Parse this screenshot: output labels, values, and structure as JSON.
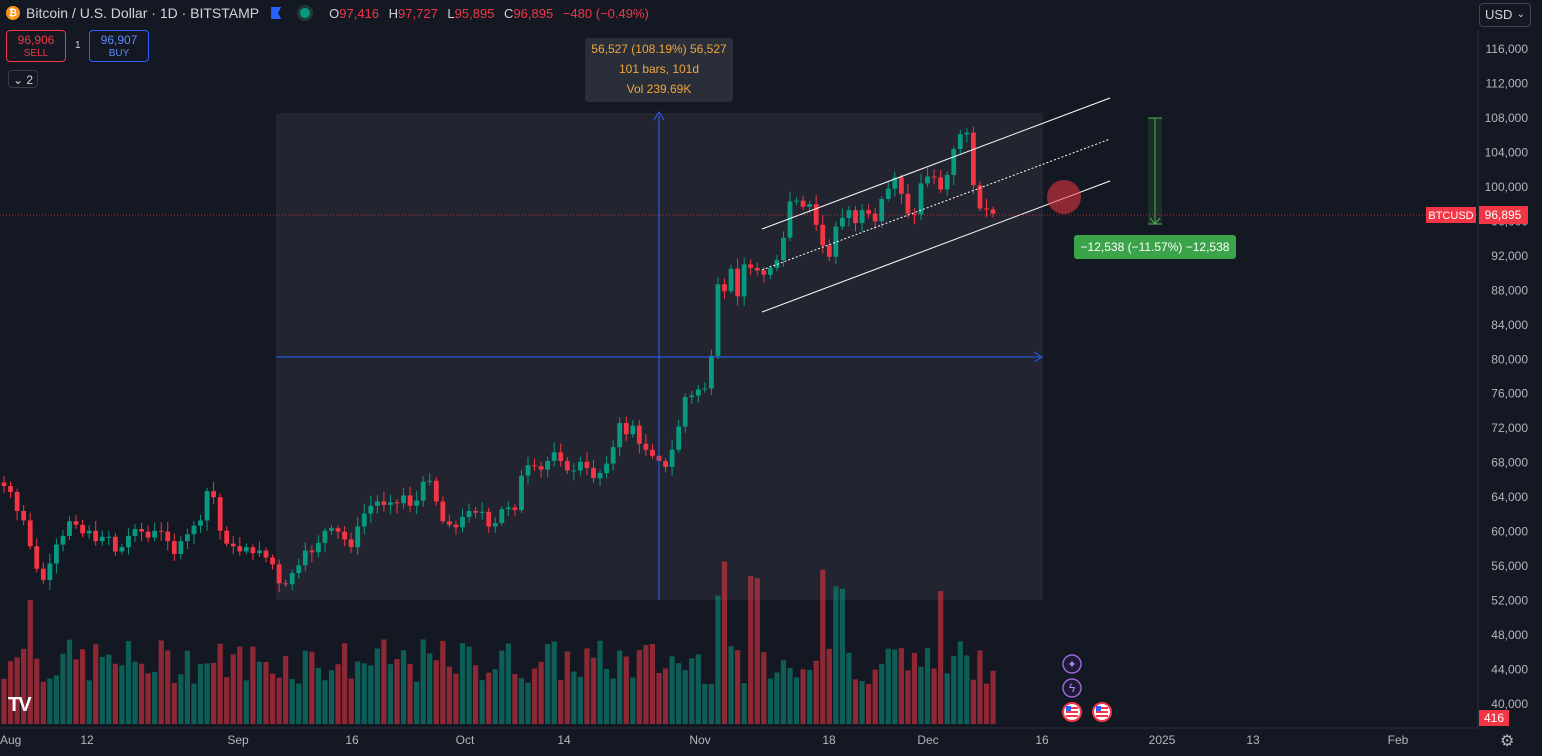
{
  "header": {
    "coin_symbol": "₿",
    "title": "Bitcoin / U.S. Dollar · 1D · BITSTAMP",
    "open_label": "O",
    "open": "97,416",
    "high_label": "H",
    "high": "97,727",
    "low_label": "L",
    "low": "95,895",
    "close_label": "C",
    "close": "96,895",
    "change": "−480 (−0.49%)"
  },
  "trade": {
    "sell_price": "96,906",
    "sell_label": "SELL",
    "buy_price": "96,907",
    "buy_label": "BUY",
    "quantity": "1",
    "collapse_count": "2"
  },
  "currency": "USD",
  "axis": {
    "y_ticks": [
      "116,000",
      "112,000",
      "108,000",
      "104,000",
      "100,000",
      "96,000",
      "92,000",
      "88,000",
      "84,000",
      "80,000",
      "76,000",
      "72,000",
      "68,000",
      "64,000",
      "60,000",
      "56,000",
      "52,000",
      "48,000",
      "44,000",
      "40,000"
    ],
    "x_ticks": [
      "Aug",
      "12",
      "Sep",
      "16",
      "Oct",
      "14",
      "Nov",
      "18",
      "Dec",
      "16",
      "2025",
      "13",
      "Feb"
    ],
    "symbol_tag": "BTCUSD",
    "price_tag": "96,895",
    "volume_tag": "416"
  },
  "measure": {
    "line1": "56,527 (108.19%) 56,527",
    "line2": "101 bars, 101d",
    "line3": "Vol 239.69K"
  },
  "range_label": "−12,538 (−11.57%) −12,538",
  "icons": [
    "sparkle-icon",
    "lightning-icon",
    "us-flag-icon",
    "us-flag-icon"
  ],
  "colors": {
    "up": "#089981",
    "down": "#f23645",
    "measure_line": "#2962ff",
    "range": "#4caf50",
    "background": "#141823"
  },
  "chart_data": {
    "type": "candlestick",
    "title": "Bitcoin / U.S. Dollar · 1D · BITSTAMP",
    "ylim": [
      38000,
      118000
    ],
    "closes": [
      65300,
      64600,
      62400,
      61300,
      58300,
      55700,
      54400,
      56300,
      58500,
      59500,
      61200,
      60800,
      59800,
      60100,
      58900,
      59400,
      59400,
      57700,
      58200,
      59500,
      60300,
      60000,
      59300,
      60100,
      60000,
      58900,
      57400,
      58900,
      59700,
      60700,
      61300,
      64700,
      64000,
      60100,
      58600,
      58300,
      57700,
      58200,
      57500,
      57800,
      57000,
      56200,
      54000,
      53900,
      55200,
      56100,
      57800,
      57600,
      58700,
      60100,
      60400,
      60000,
      59100,
      58200,
      60600,
      62100,
      63000,
      63500,
      63100,
      63400,
      63300,
      64200,
      63000,
      63600,
      65800,
      65900,
      63500,
      61200,
      60800,
      60500,
      61700,
      62400,
      62200,
      62300,
      60600,
      61000,
      62600,
      62800,
      62500,
      66500,
      67700,
      67600,
      67200,
      68200,
      69200,
      68200,
      67100,
      67100,
      68100,
      67400,
      66200,
      66800,
      67900,
      69800,
      72600,
      71300,
      72300,
      70200,
      69500,
      68800,
      68200,
      67500,
      69500,
      72200,
      75600,
      75800,
      76500,
      76600,
      80400,
      88700,
      87900,
      90500,
      87300,
      91000,
      90600,
      90300,
      89800,
      90600,
      91500,
      94100,
      98300,
      98400,
      97700,
      98000,
      95600,
      93200,
      91900,
      95400,
      96400,
      97300,
      95800,
      97300,
      96900,
      96000,
      98600,
      99800,
      101100,
      99200,
      96900,
      96800,
      100400,
      101200,
      101100,
      99700,
      101400,
      104400,
      106100,
      106300,
      100200,
      97500,
      97400,
      96895
    ],
    "volume_note": "per-day bars colored by direction"
  }
}
